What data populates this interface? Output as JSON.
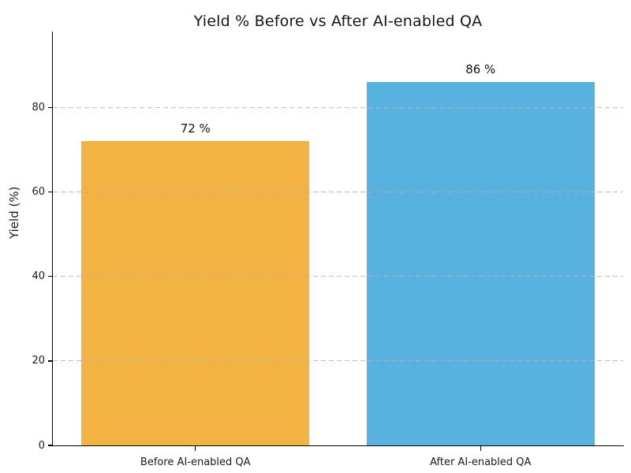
{
  "chart_data": {
    "type": "bar",
    "title": "Yield % Before vs After AI-enabled QA",
    "xlabel": "",
    "ylabel": "Yield (%)",
    "categories": [
      "Before AI-enabled QA",
      "After AI-enabled QA"
    ],
    "values": [
      72,
      86
    ],
    "value_labels": [
      "72 %",
      "86 %"
    ],
    "series": [
      {
        "name": "Yield %",
        "values": [
          72,
          86
        ]
      }
    ],
    "bar_colors": [
      "#f2b342",
      "#58b2e0"
    ],
    "ylim": [
      0,
      98
    ],
    "yticks": [
      0,
      20,
      40,
      60,
      80
    ],
    "grid": "horizontal-dashed",
    "grid_color": "#c9beb6",
    "legend_position": "none",
    "text_color": "#1a1a1a",
    "axis_color": "#000000",
    "background_color": "#ffffff"
  }
}
